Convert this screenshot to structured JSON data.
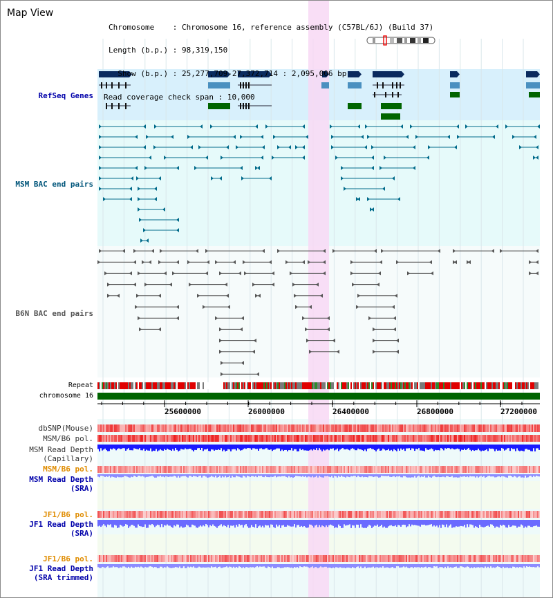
{
  "title": "Map View",
  "info": {
    "chromosome_key": "Chromosome    ",
    "chromosome_val": "Chromosome 16, reference assembly (C57BL/6J) (Build 37)",
    "length_key": "Length (b.p.)",
    "length_val": "98,319,150",
    "show_key": "  Show (b.p.)",
    "show_val": "25,277,709-27,372,714 : 2,095,006 bp",
    "coverage_key": "Read coverage check span",
    "coverage_val": "10,000"
  },
  "tracks": {
    "refseq": "RefSeq Genes",
    "msm_bac": "MSM BAC end pairs",
    "b6n_bac": "B6N BAC end pairs",
    "repeat": "Repeat",
    "chromosome": "chromosome 16",
    "dbsnp": "dbSNP(Mouse)",
    "msm_b6_pol": "MSM/B6 pol.",
    "msm_depth_cap_1": "MSM Read Depth",
    "msm_depth_cap_2": "(Capillary)",
    "msm_b6_pol_sra": "MSM/B6 pol.",
    "msm_depth_sra_1": "MSM Read Depth",
    "msm_depth_sra_2": "(SRA)",
    "jf1_b6_pol": "JF1/B6 pol.",
    "jf1_depth_1": "JF1 Read Depth",
    "jf1_depth_2": "(SRA)",
    "jf1_b6_pol_t": "JF1/B6 pol.",
    "jf1_depth_t_1": "JF1 Read Depth",
    "jf1_depth_t_2": "(SRA trimmed)"
  },
  "axis": {
    "ticks": [
      "25600000",
      "26000000",
      "26400000",
      "26800000",
      "27200000"
    ]
  },
  "colors": {
    "highlight": "#f8d8f4",
    "refseq_bg": "#d8f0fc",
    "msm_bg": "#e6fafa",
    "gene_navy": "#0a2a5e",
    "gene_steel": "#4a90c0",
    "gene_green": "#006400",
    "msm_line": "#006a8a",
    "b6n_line": "#555555",
    "snp_red": "#e8484a",
    "depth_blue": "#1a1aff",
    "depth_light": "#8c8cff"
  }
}
